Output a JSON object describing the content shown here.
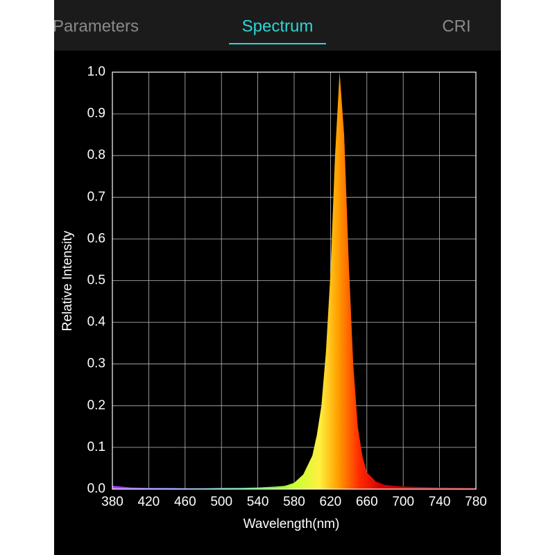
{
  "tabs": [
    "Parameters",
    "Spectrum",
    "CRI"
  ],
  "chart_data": {
    "type": "area",
    "xlabel": "Wavelength(nm)",
    "ylabel": "Relative Intensity",
    "x": [
      380,
      400,
      420,
      440,
      460,
      480,
      500,
      520,
      540,
      560,
      570,
      580,
      590,
      600,
      605,
      610,
      615,
      620,
      625,
      630,
      635,
      640,
      645,
      650,
      655,
      660,
      670,
      680,
      700,
      740,
      780
    ],
    "values": [
      0.008,
      0.004,
      0.003,
      0.003,
      0.002,
      0.002,
      0.003,
      0.003,
      0.004,
      0.006,
      0.008,
      0.015,
      0.035,
      0.08,
      0.13,
      0.2,
      0.33,
      0.52,
      0.8,
      1.0,
      0.85,
      0.55,
      0.3,
      0.15,
      0.08,
      0.04,
      0.018,
      0.01,
      0.006,
      0.004,
      0.003
    ],
    "xlim": [
      380,
      780
    ],
    "xticks": [
      380,
      420,
      460,
      500,
      540,
      580,
      620,
      660,
      700,
      740,
      780
    ],
    "ylim": [
      0,
      1
    ],
    "yticks": [
      {
        "value": 0,
        "label": "0.0"
      },
      0.1,
      0.2,
      0.3,
      0.4,
      0.5,
      0.6,
      0.7,
      0.8,
      0.9,
      {
        "value": 1,
        "label": "1.0"
      }
    ],
    "grid": true
  }
}
